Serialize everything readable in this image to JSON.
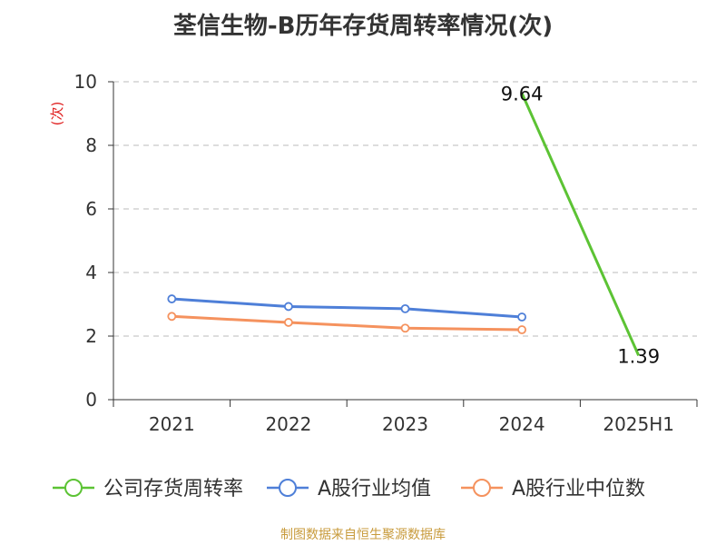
{
  "chart_data": {
    "type": "line",
    "title": "荃信生物-B历年存货周转率情况(次)",
    "ylabel": "(次)",
    "xlabel": "",
    "categories": [
      "2021",
      "2022",
      "2023",
      "2024",
      "2025H1"
    ],
    "ylim": [
      0,
      10
    ],
    "yticks": [
      0,
      2,
      4,
      6,
      8,
      10
    ],
    "grid": true,
    "legend_position": "bottom",
    "series": [
      {
        "name": "公司存货周转率",
        "color": "#5cc334",
        "values": [
          null,
          null,
          null,
          9.64,
          1.39
        ],
        "labels": [
          "",
          "",
          "",
          "9.64",
          "1.39"
        ]
      },
      {
        "name": "A股行业均值",
        "color": "#4e7fd8",
        "values": [
          3.17,
          2.93,
          2.86,
          2.6,
          null
        ]
      },
      {
        "name": "A股行业中位数",
        "color": "#f5925e",
        "values": [
          2.62,
          2.43,
          2.25,
          2.2,
          null
        ]
      }
    ]
  },
  "footer": {
    "source": "制图数据来自恒生聚源数据库"
  },
  "colors": {
    "axis": "#333333",
    "grid": "#bbbbbb",
    "ylabel": "#e02020",
    "source": "#c89b3c"
  }
}
